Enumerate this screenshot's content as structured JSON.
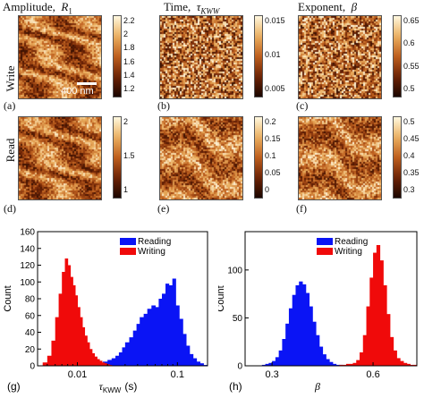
{
  "headers": {
    "amplitude": "Amplitude,",
    "amplitude_sym": "R",
    "amplitude_sub": "1",
    "time": "Time,",
    "time_sym": "τ",
    "time_sub": "KWW",
    "exponent": "Exponent,",
    "exponent_sym": "β"
  },
  "row_labels": {
    "write": "Write",
    "read": "Read"
  },
  "panel_labels": {
    "a": "(a)",
    "b": "(b)",
    "c": "(c)",
    "d": "(d)",
    "e": "(e)",
    "f": "(f)",
    "g": "(g)",
    "h": "(h)"
  },
  "scale_bar": "400 nm",
  "colorbars": {
    "a": [
      "2.2",
      "2",
      "1.8",
      "1.6",
      "1.4",
      "1.2"
    ],
    "b": [
      "0.015",
      "0.01",
      "0.005"
    ],
    "c": [
      "0.65",
      "0.6",
      "0.55",
      "0.5"
    ],
    "d": [
      "2",
      "1.5",
      "1"
    ],
    "e": [
      "0.2",
      "0.15",
      "0.1",
      "0.05",
      "0"
    ],
    "f": [
      "0.5",
      "0.45",
      "0.4",
      "0.35",
      "0.3"
    ]
  },
  "colors": {
    "reading": "#0a14f5",
    "writing": "#f00a0a",
    "map_dark": "#1a0600",
    "map_light": "#fff8e0"
  },
  "chart_data": [
    {
      "type": "bar",
      "panel": "g",
      "xlabel": "τ",
      "xlabel_sub": "KWW",
      "xlabel_unit": "(s)",
      "ylabel": "Count",
      "xscale": "log",
      "xlim": [
        0.004,
        0.2
      ],
      "ylim": [
        0,
        160
      ],
      "yticks": [
        0,
        20,
        40,
        60,
        80,
        100,
        120,
        140,
        160
      ],
      "xticks": [
        {
          "value": 0.01,
          "label": "0.01"
        },
        {
          "value": 0.1,
          "label": "0.1"
        }
      ],
      "legend": "top-right",
      "series": [
        {
          "name": "Reading",
          "color": "#0a14f5",
          "x": [
            0.016,
            0.018,
            0.02,
            0.022,
            0.024,
            0.026,
            0.028,
            0.03,
            0.033,
            0.036,
            0.039,
            0.042,
            0.046,
            0.05,
            0.055,
            0.06,
            0.065,
            0.07,
            0.076,
            0.082,
            0.089,
            0.096,
            0.104,
            0.113,
            0.122,
            0.132,
            0.143,
            0.155,
            0.168,
            0.182
          ],
          "values": [
            3,
            5,
            7,
            9,
            12,
            16,
            22,
            28,
            34,
            42,
            50,
            58,
            62,
            68,
            72,
            70,
            80,
            86,
            98,
            96,
            104,
            72,
            56,
            38,
            24,
            14,
            9,
            5,
            3,
            1
          ]
        },
        {
          "name": "Writing",
          "color": "#f00a0a",
          "x": [
            0.0045,
            0.005,
            0.0055,
            0.006,
            0.0065,
            0.007,
            0.0075,
            0.008,
            0.0085,
            0.009,
            0.0095,
            0.01,
            0.0106,
            0.0112,
            0.0118,
            0.0125,
            0.0132,
            0.014,
            0.0148,
            0.0157,
            0.0166,
            0.0176,
            0.0186,
            0.0197,
            0.0208
          ],
          "values": [
            4,
            12,
            30,
            58,
            86,
            112,
            128,
            120,
            106,
            96,
            84,
            70,
            58,
            46,
            36,
            28,
            20,
            15,
            11,
            8,
            6,
            4,
            3,
            2,
            1
          ]
        }
      ]
    },
    {
      "type": "bar",
      "panel": "h",
      "xlabel": "β",
      "ylabel": "Count",
      "xlim": [
        0.22,
        0.73
      ],
      "ylim": [
        0,
        140
      ],
      "yticks": [
        0,
        50,
        100
      ],
      "xticks": [
        {
          "value": 0.3,
          "label": "0.3"
        },
        {
          "value": 0.6,
          "label": "0.6"
        }
      ],
      "legend": "top-center",
      "series": [
        {
          "name": "Reading",
          "color": "#0a14f5",
          "x": [
            0.27,
            0.28,
            0.29,
            0.3,
            0.31,
            0.32,
            0.33,
            0.34,
            0.35,
            0.36,
            0.37,
            0.38,
            0.39,
            0.4,
            0.41,
            0.42,
            0.43,
            0.44,
            0.45,
            0.46,
            0.47,
            0.48,
            0.49,
            0.5
          ],
          "values": [
            1,
            2,
            3,
            5,
            9,
            16,
            28,
            44,
            60,
            74,
            84,
            88,
            85,
            76,
            62,
            46,
            32,
            20,
            12,
            7,
            4,
            2,
            1,
            1
          ]
        },
        {
          "name": "Writing",
          "color": "#f00a0a",
          "x": [
            0.5,
            0.52,
            0.54,
            0.55,
            0.56,
            0.57,
            0.58,
            0.59,
            0.6,
            0.61,
            0.62,
            0.63,
            0.64,
            0.65,
            0.66,
            0.67,
            0.68,
            0.69,
            0.7,
            0.71,
            0.72
          ],
          "values": [
            1,
            2,
            3,
            6,
            14,
            32,
            62,
            92,
            118,
            126,
            110,
            84,
            54,
            30,
            16,
            8,
            5,
            3,
            2,
            1,
            1
          ]
        }
      ]
    }
  ]
}
